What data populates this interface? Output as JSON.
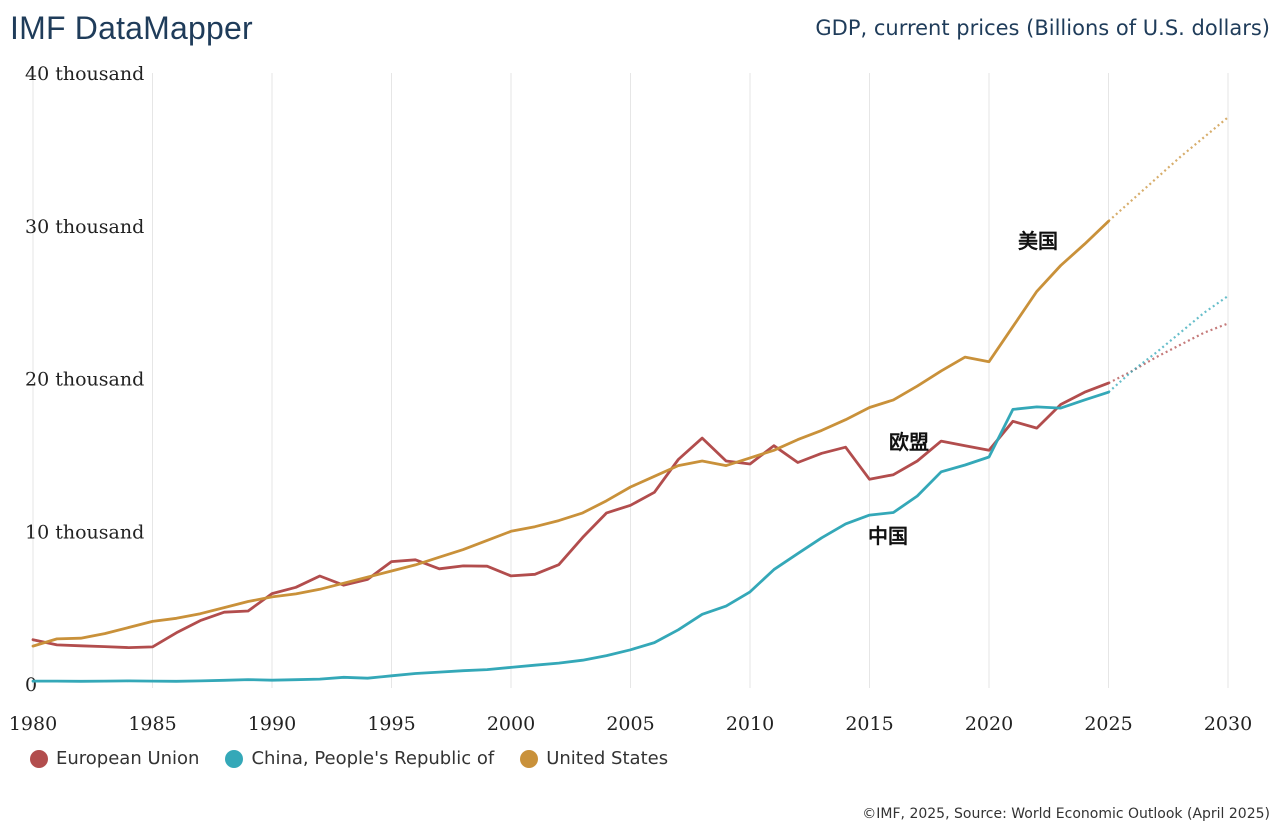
{
  "header": {
    "brand": "IMF DataMapper",
    "subtitle": "GDP, current prices (Billions of U.S. dollars)"
  },
  "footer": {
    "source": "©IMF, 2025, Source: World Economic Outlook (April 2025)"
  },
  "colors": {
    "eu": "#b24d4d",
    "china": "#34a8b8",
    "us": "#c9913a",
    "grid": "#e6e6e6"
  },
  "chart_data": {
    "type": "line",
    "title": "GDP, current prices (Billions of U.S. dollars)",
    "xlabel": "",
    "ylabel": "",
    "xlim": [
      1980,
      2030
    ],
    "ylim": [
      0,
      40000
    ],
    "x_ticks": [
      1980,
      1985,
      1990,
      1995,
      2000,
      2005,
      2010,
      2015,
      2020,
      2025,
      2030
    ],
    "x_tick_labels": [
      "1980",
      "1985",
      "1990",
      "1995",
      "2000",
      "2005",
      "2010",
      "2015",
      "2020",
      "2025",
      "2030"
    ],
    "y_ticks": [
      0,
      10000,
      20000,
      30000,
      40000
    ],
    "y_tick_labels": [
      "0",
      "10 thousand",
      "20 thousand",
      "30 thousand",
      "40 thousand"
    ],
    "grid": "vertical",
    "legend_position": "bottom-left",
    "projection_start": 2025,
    "series": [
      {
        "key": "eu",
        "name": "European Union",
        "annotation": "欧盟",
        "x": [
          1980,
          1981,
          1982,
          1983,
          1984,
          1985,
          1986,
          1987,
          1988,
          1989,
          1990,
          1991,
          1992,
          1993,
          1994,
          1995,
          1996,
          1997,
          1998,
          1999,
          2000,
          2001,
          2002,
          2003,
          2004,
          2005,
          2006,
          2007,
          2008,
          2009,
          2010,
          2011,
          2012,
          2013,
          2014,
          2015,
          2016,
          2017,
          2018,
          2019,
          2020,
          2021,
          2022,
          2023,
          2024,
          2025,
          2026,
          2027,
          2028,
          2029,
          2030
        ],
        "values": [
          2900,
          2560,
          2500,
          2450,
          2380,
          2430,
          3350,
          4150,
          4700,
          4780,
          5920,
          6330,
          7070,
          6470,
          6850,
          8010,
          8130,
          7540,
          7730,
          7710,
          7080,
          7180,
          7810,
          9600,
          11200,
          11700,
          12550,
          14700,
          16100,
          14600,
          14400,
          15600,
          14500,
          15100,
          15500,
          13400,
          13700,
          14600,
          15900,
          15600,
          15300,
          17200,
          16750,
          18300,
          19100,
          19700,
          20500,
          21400,
          22200,
          23000,
          23600
        ]
      },
      {
        "key": "china",
        "name": "China, People's Republic of",
        "annotation": "中国",
        "x": [
          1980,
          1981,
          1982,
          1983,
          1984,
          1985,
          1986,
          1987,
          1988,
          1989,
          1990,
          1991,
          1992,
          1993,
          1994,
          1995,
          1996,
          1997,
          1998,
          1999,
          2000,
          2001,
          2002,
          2003,
          2004,
          2005,
          2006,
          2007,
          2008,
          2009,
          2010,
          2011,
          2012,
          2013,
          2014,
          2015,
          2016,
          2017,
          2018,
          2019,
          2020,
          2021,
          2022,
          2023,
          2024,
          2025,
          2026,
          2027,
          2028,
          2029,
          2030
        ],
        "values": [
          190,
          190,
          180,
          190,
          200,
          190,
          180,
          200,
          240,
          290,
          250,
          280,
          320,
          440,
          380,
          540,
          690,
          780,
          870,
          940,
          1090,
          1230,
          1370,
          1560,
          1860,
          2240,
          2710,
          3550,
          4560,
          5100,
          6030,
          7490,
          8540,
          9570,
          10480,
          11060,
          11230,
          12310,
          13890,
          14340,
          14860,
          17980,
          18140,
          18060,
          18600,
          19100,
          20500,
          21700,
          23000,
          24300,
          25400
        ]
      },
      {
        "key": "us",
        "name": "United States",
        "annotation": "美国",
        "x": [
          1980,
          1981,
          1982,
          1983,
          1984,
          1985,
          1986,
          1987,
          1988,
          1989,
          1990,
          1991,
          1992,
          1993,
          1994,
          1995,
          1996,
          1997,
          1998,
          1999,
          2000,
          2001,
          2002,
          2003,
          2004,
          2005,
          2006,
          2007,
          2008,
          2009,
          2010,
          2011,
          2012,
          2013,
          2014,
          2015,
          2016,
          2017,
          2018,
          2019,
          2020,
          2021,
          2022,
          2023,
          2024,
          2025,
          2026,
          2027,
          2028,
          2029,
          2030
        ],
        "values": [
          2480,
          2950,
          3000,
          3300,
          3700,
          4100,
          4300,
          4600,
          5000,
          5400,
          5700,
          5900,
          6200,
          6600,
          7000,
          7400,
          7800,
          8300,
          8800,
          9400,
          10000,
          10300,
          10700,
          11200,
          12000,
          12900,
          13600,
          14300,
          14600,
          14300,
          14800,
          15300,
          16000,
          16600,
          17300,
          18100,
          18600,
          19500,
          20500,
          21400,
          21100,
          23400,
          25700,
          27400,
          28800,
          30300,
          31700,
          33100,
          34500,
          35800,
          37100
        ]
      }
    ]
  }
}
